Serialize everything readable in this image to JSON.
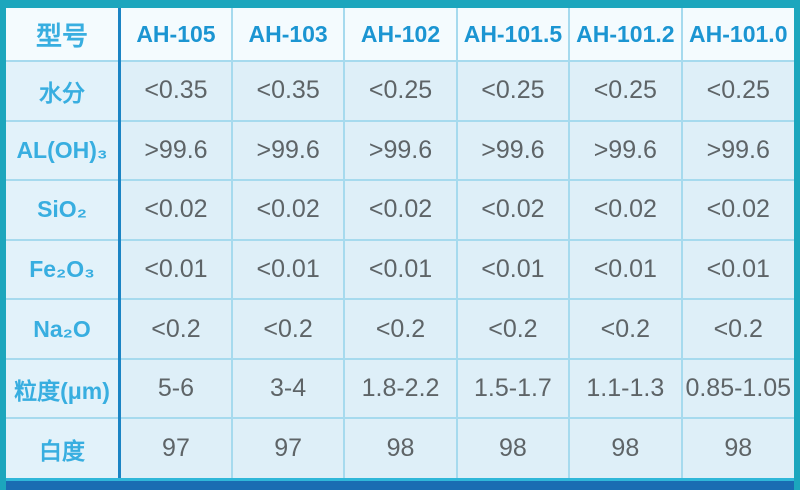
{
  "chart_data": {
    "type": "table",
    "title": "",
    "columns": [
      "型号",
      "AH-105",
      "AH-103",
      "AH-102",
      "AH-101.5",
      "AH-101.2",
      "AH-101.0"
    ],
    "rows": [
      {
        "label": "水分",
        "values": [
          "<0.35",
          "<0.35",
          "<0.25",
          "<0.25",
          "<0.25",
          "<0.25"
        ]
      },
      {
        "label": "AL(OH)₃",
        "values": [
          ">99.6",
          ">99.6",
          ">99.6",
          ">99.6",
          ">99.6",
          ">99.6"
        ]
      },
      {
        "label": "SiO₂",
        "values": [
          "<0.02",
          "<0.02",
          "<0.02",
          "<0.02",
          "<0.02",
          "<0.02"
        ]
      },
      {
        "label": "Fe₂O₃",
        "values": [
          "<0.01",
          "<0.01",
          "<0.01",
          "<0.01",
          "<0.01",
          "<0.01"
        ]
      },
      {
        "label": "Na₂O",
        "values": [
          "<0.2",
          "<0.2",
          "<0.2",
          "<0.2",
          "<0.2",
          "<0.2"
        ]
      },
      {
        "label": "粒度(μm)",
        "values": [
          "5-6",
          "3-4",
          "1.8-2.2",
          "1.5-1.7",
          "1.1-1.3",
          "0.85-1.05"
        ]
      },
      {
        "label": "白度",
        "values": [
          "97",
          "97",
          "98",
          "98",
          "98",
          "98"
        ]
      }
    ],
    "layout": {
      "grid": "on",
      "header_row": true,
      "header_column": true
    }
  },
  "colors": {
    "frame-teal": "#1CA6BD",
    "accent-line": "#1B84C4",
    "grid-line": "#A6DAEE",
    "header-bg": "#F4FBFE",
    "label-bg": "#E2F2FA",
    "cell-bg": "#DEEFF8",
    "model-text": "#1B95D2",
    "label-text": "#38AEE0",
    "value-text": "#5E6467",
    "bottom-cyan": "#2FB7D9",
    "bottom-blue": "#1A6CB2"
  }
}
